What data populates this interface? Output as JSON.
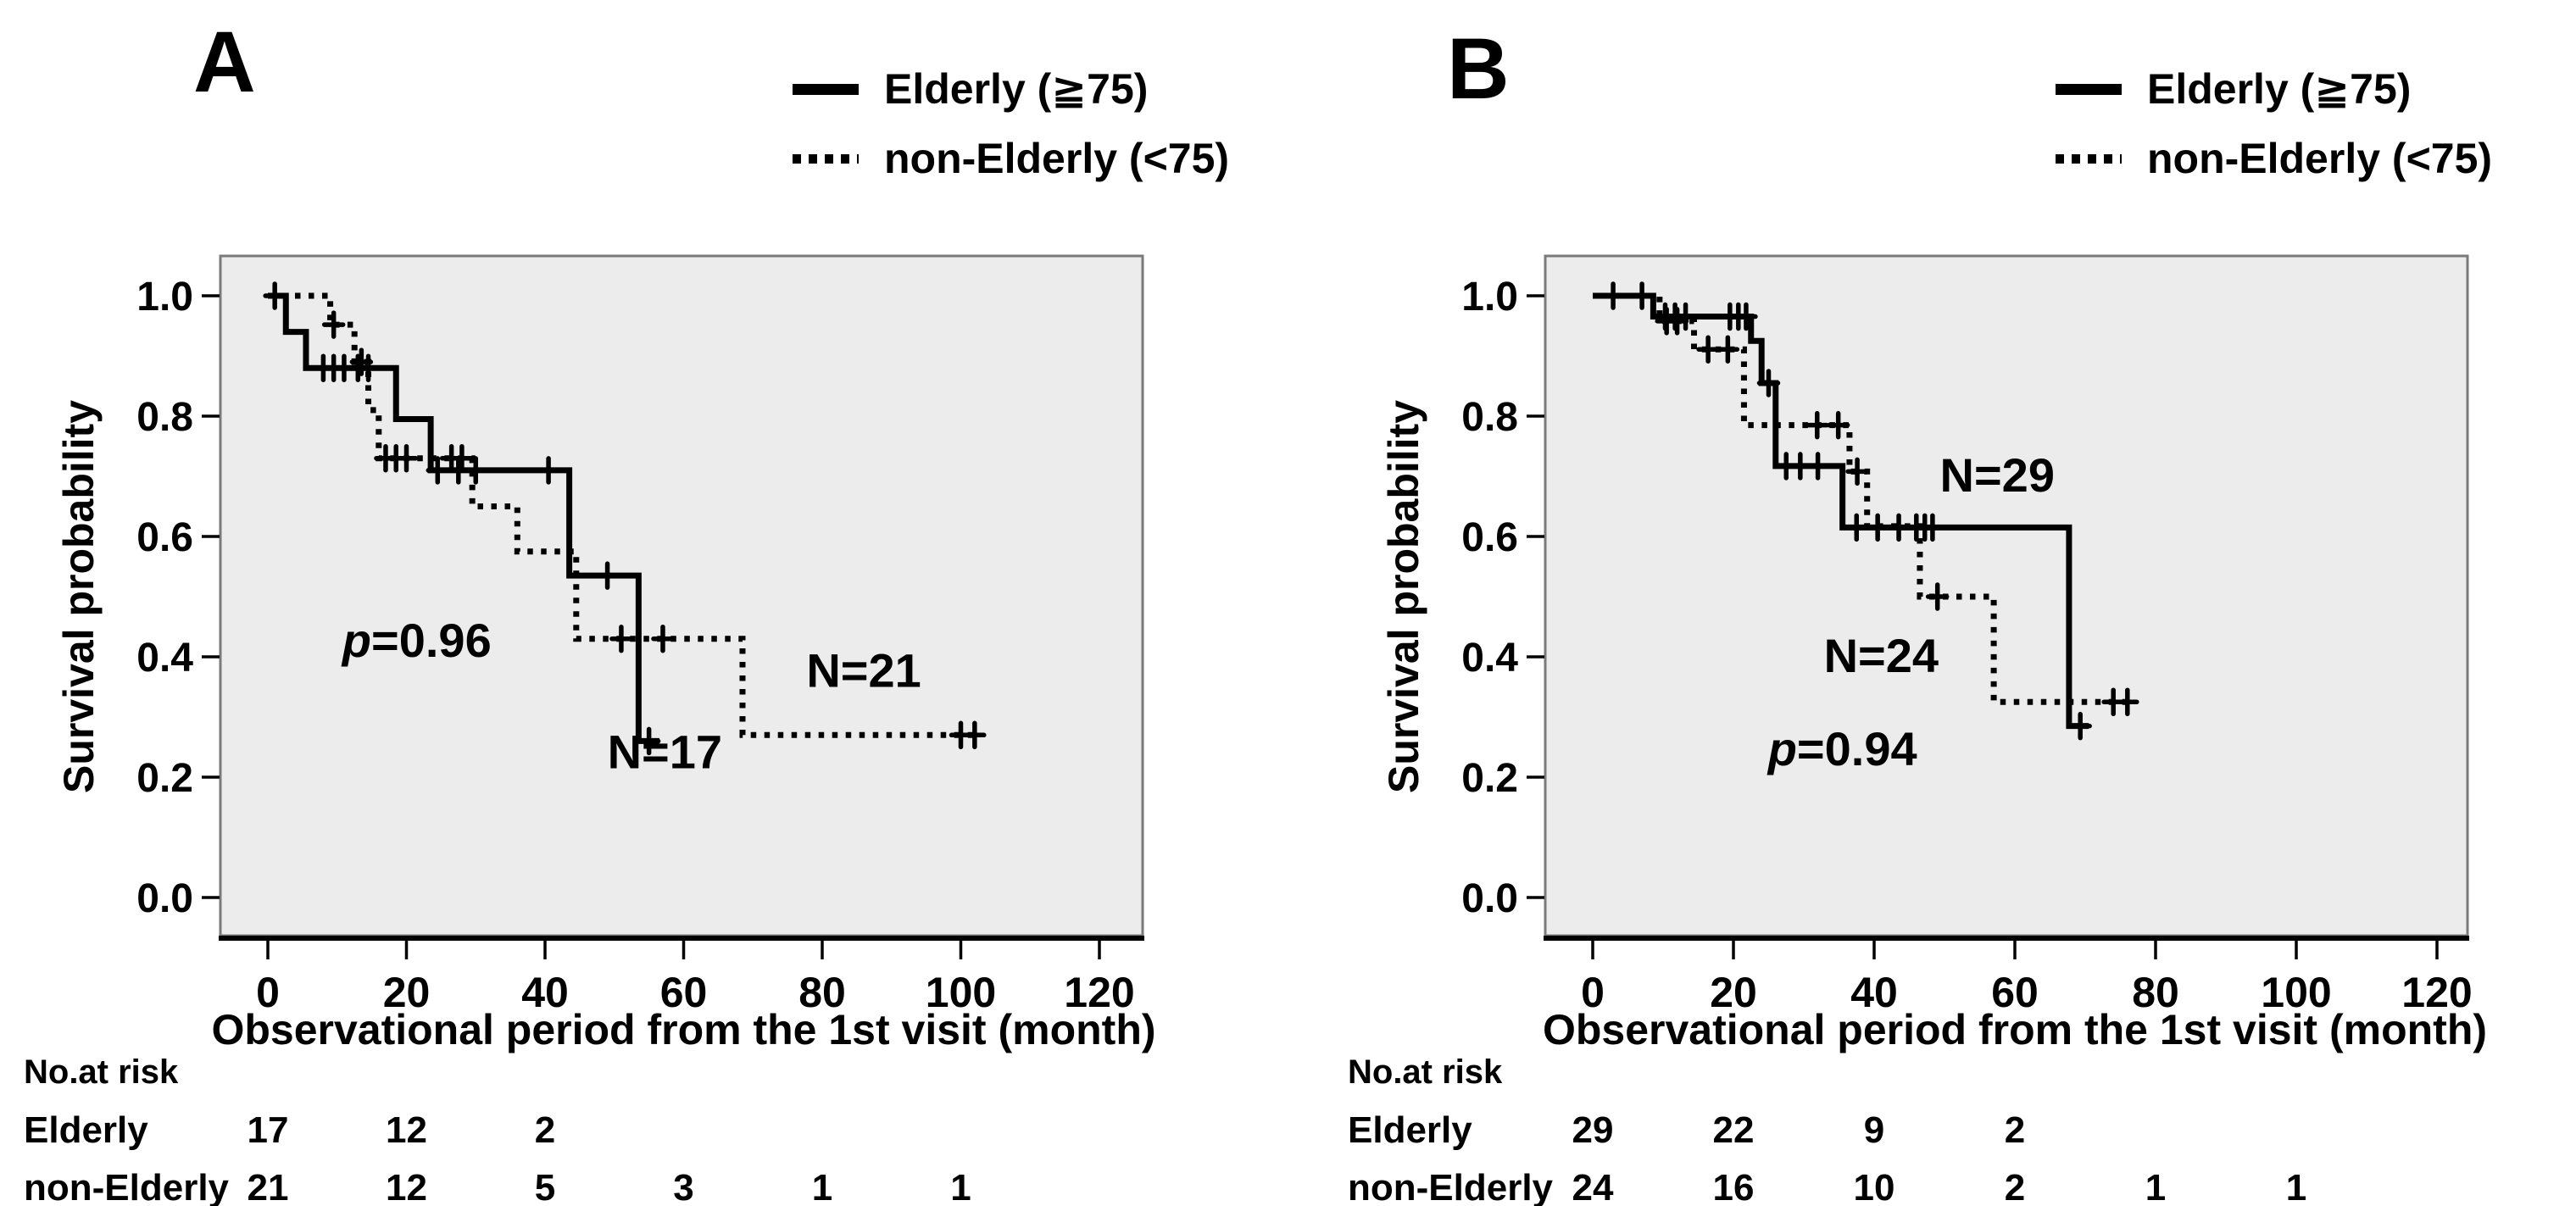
{
  "labels": {
    "ylabel": "Survival probability",
    "xlabel": "Observational period from the 1st visit (month)",
    "risk_header": "No.at risk",
    "legend": {
      "elderly": "Elderly (≧75)",
      "non_elderly": "non-Elderly (<75)"
    }
  },
  "style_colors": {
    "line": "#000000",
    "plot_bg": "#ececec",
    "frame": "#7a7a7a",
    "text": "#000000"
  },
  "chart_data": [
    {
      "panel": "A",
      "type": "line",
      "subtype": "kaplan-meier-step",
      "title": "",
      "xlabel": "Observational period from the 1st visit (month)",
      "ylabel": "Survival probability",
      "xticks": [
        0,
        20,
        40,
        60,
        80,
        100,
        120
      ],
      "ytick_labels": [
        "0.0",
        "0.2",
        "0.4",
        "0.6",
        "0.8",
        "1.0"
      ],
      "xlim": [
        0,
        126
      ],
      "ylim": [
        0,
        1.0
      ],
      "grid": false,
      "legend_position": "top-right-outside",
      "p_value": {
        "italic": "p",
        "text": "=0.96",
        "anchor": {
          "t": 21.5,
          "s": 0.4
        },
        "align": "middle"
      },
      "series": [
        {
          "name": "Elderly (≧75)",
          "style": "solid",
          "n_label": {
            "text": "N=17",
            "anchor": {
              "t": 49,
              "s": 0.215
            },
            "align": "start"
          },
          "steps": [
            [
              0,
              1.0
            ],
            [
              2.6,
              0.94
            ],
            [
              5.5,
              0.88
            ],
            [
              18.5,
              0.795
            ],
            [
              23.5,
              0.71
            ],
            [
              43.5,
              0.535
            ],
            [
              53.5,
              0.26
            ]
          ],
          "end": 56.5,
          "censors": [
            [
              1,
              1.0
            ],
            [
              8,
              0.88
            ],
            [
              9.5,
              0.88
            ],
            [
              11,
              0.88
            ],
            [
              13,
              0.88
            ],
            [
              14.5,
              0.88
            ],
            [
              24.5,
              0.71
            ],
            [
              27.5,
              0.71
            ],
            [
              30,
              0.71
            ],
            [
              40.5,
              0.71
            ],
            [
              49,
              0.535
            ],
            [
              55,
              0.26
            ]
          ]
        },
        {
          "name": "non-Elderly (<75)",
          "style": "dotted",
          "n_label": {
            "text": "N=21",
            "anchor": {
              "t": 86,
              "s": 0.35
            },
            "align": "middle"
          },
          "steps": [
            [
              0,
              1.0
            ],
            [
              9,
              0.952
            ],
            [
              12.5,
              0.89
            ],
            [
              14.5,
              0.81
            ],
            [
              16,
              0.73
            ],
            [
              29.5,
              0.65
            ],
            [
              36,
              0.575
            ],
            [
              44.5,
              0.43
            ],
            [
              68.5,
              0.27
            ]
          ],
          "end": 102.5,
          "censors": [
            [
              9.5,
              0.952
            ],
            [
              13.5,
              0.89
            ],
            [
              17,
              0.73
            ],
            [
              18.5,
              0.73
            ],
            [
              20,
              0.73
            ],
            [
              26.5,
              0.73
            ],
            [
              28,
              0.73
            ],
            [
              51,
              0.43
            ],
            [
              57,
              0.43
            ],
            [
              100,
              0.27
            ],
            [
              102,
              0.27
            ]
          ]
        }
      ],
      "risk_table": {
        "rows": [
          {
            "label": "Elderly",
            "values": [
              17,
              12,
              2
            ]
          },
          {
            "label": "non-Elderly",
            "values": [
              21,
              12,
              5,
              3,
              1,
              1
            ]
          }
        ]
      }
    },
    {
      "panel": "B",
      "type": "line",
      "subtype": "kaplan-meier-step",
      "title": "",
      "xlabel": "Observational period from the 1st visit (month)",
      "ylabel": "Survival probability",
      "xticks": [
        0,
        20,
        40,
        60,
        80,
        100,
        120
      ],
      "ytick_labels": [
        "0.0",
        "0.2",
        "0.4",
        "0.6",
        "0.8",
        "1.0"
      ],
      "xlim": [
        0,
        126
      ],
      "ylim": [
        0,
        1.0
      ],
      "grid": false,
      "legend_position": "top-right-outside",
      "p_value": {
        "italic": "p",
        "text": "=0.94",
        "anchor": {
          "t": 35.5,
          "s": 0.22
        },
        "align": "middle"
      },
      "series": [
        {
          "name": "Elderly (≧75)",
          "style": "solid",
          "n_label": {
            "text": "N=29",
            "anchor": {
              "t": 57.5,
              "s": 0.675
            },
            "align": "middle"
          },
          "steps": [
            [
              0,
              1.0
            ],
            [
              8.6,
              0.9655
            ],
            [
              22.5,
              0.925
            ],
            [
              24,
              0.855
            ],
            [
              26,
              0.717
            ],
            [
              35.5,
              0.615
            ],
            [
              67.7,
              0.285
            ]
          ],
          "end": 70.5,
          "censors": [
            [
              2.9,
              1.0
            ],
            [
              7,
              1.0
            ],
            [
              10.3,
              0.9655
            ],
            [
              11.7,
              0.9655
            ],
            [
              13.2,
              0.9655
            ],
            [
              19.5,
              0.9655
            ],
            [
              20.7,
              0.9655
            ],
            [
              21.8,
              0.9655
            ],
            [
              25,
              0.855
            ],
            [
              27.5,
              0.717
            ],
            [
              29.5,
              0.717
            ],
            [
              32,
              0.717
            ],
            [
              37.5,
              0.615
            ],
            [
              40.5,
              0.615
            ],
            [
              43.5,
              0.615
            ],
            [
              46,
              0.615
            ],
            [
              47.2,
              0.615
            ],
            [
              48.3,
              0.615
            ],
            [
              69.3,
              0.285
            ]
          ]
        },
        {
          "name": "non-Elderly (<75)",
          "style": "dotted",
          "n_label": {
            "text": "N=24",
            "anchor": {
              "t": 41,
              "s": 0.375
            },
            "align": "middle"
          },
          "steps": [
            [
              0,
              1.0
            ],
            [
              9.5,
              0.958
            ],
            [
              14.4,
              0.911
            ],
            [
              21.5,
              0.785
            ],
            [
              36.5,
              0.708
            ],
            [
              39,
              0.617
            ],
            [
              46.5,
              0.5
            ],
            [
              57,
              0.325
            ]
          ],
          "end": 77,
          "censors": [
            [
              10.5,
              0.958
            ],
            [
              12,
              0.958
            ],
            [
              16.4,
              0.911
            ],
            [
              19.2,
              0.911
            ],
            [
              31.9,
              0.785
            ],
            [
              34.9,
              0.785
            ],
            [
              37.6,
              0.708
            ],
            [
              49,
              0.5
            ],
            [
              74,
              0.325
            ],
            [
              76,
              0.325
            ]
          ]
        }
      ],
      "risk_table": {
        "rows": [
          {
            "label": "Elderly",
            "values": [
              29,
              22,
              9,
              2
            ]
          },
          {
            "label": "non-Elderly",
            "values": [
              24,
              16,
              10,
              2,
              1,
              1
            ]
          }
        ]
      }
    }
  ]
}
